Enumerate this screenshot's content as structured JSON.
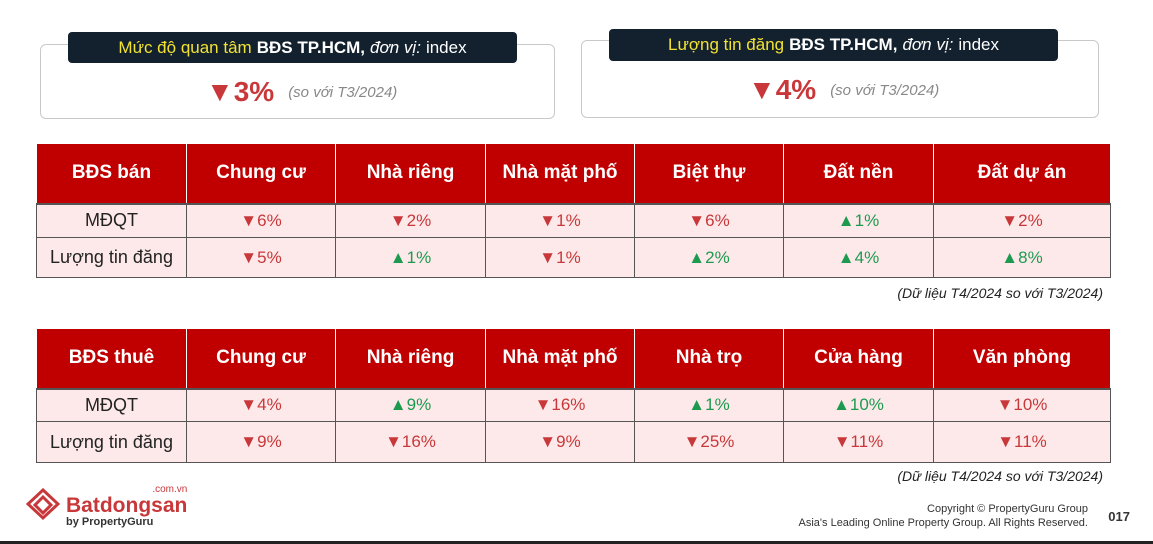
{
  "cards": [
    {
      "highlight": "Mức độ quan tâm",
      "bold": "BĐS TP.HCM,",
      "italic": "đơn vị:",
      "rest": "index",
      "value": "▼3%",
      "compare": "(so với T3/2024)"
    },
    {
      "highlight": "Lượng tin đăng",
      "bold": "BĐS TP.HCM,",
      "italic": "đơn vị:",
      "rest": "index",
      "value": "▼4%",
      "compare": "(so với T3/2024)"
    }
  ],
  "sale_table": {
    "headers": [
      "BĐS bán",
      "Chung cư",
      "Nhà riêng",
      "Nhà mặt phố",
      "Biệt thự",
      "Đất nền",
      "Đất dự án"
    ],
    "rows": [
      {
        "label": "MĐQT",
        "cells": [
          {
            "v": "▼6%",
            "d": "dn"
          },
          {
            "v": "▼2%",
            "d": "dn"
          },
          {
            "v": "▼1%",
            "d": "dn"
          },
          {
            "v": "▼6%",
            "d": "dn"
          },
          {
            "v": "▲1%",
            "d": "up"
          },
          {
            "v": "▼2%",
            "d": "dn"
          }
        ]
      },
      {
        "label": "Lượng tin đăng",
        "cells": [
          {
            "v": "▼5%",
            "d": "dn"
          },
          {
            "v": "▲1%",
            "d": "up"
          },
          {
            "v": "▼1%",
            "d": "dn"
          },
          {
            "v": "▲2%",
            "d": "up"
          },
          {
            "v": "▲4%",
            "d": "up"
          },
          {
            "v": "▲8%",
            "d": "up"
          }
        ]
      }
    ],
    "note": "(Dữ liệu T4/2024 so với T3/2024)"
  },
  "rent_table": {
    "headers": [
      "BĐS thuê",
      "Chung cư",
      "Nhà riêng",
      "Nhà mặt phố",
      "Nhà trọ",
      "Cửa hàng",
      "Văn phòng"
    ],
    "rows": [
      {
        "label": "MĐQT",
        "cells": [
          {
            "v": "▼4%",
            "d": "dn"
          },
          {
            "v": "▲9%",
            "d": "up"
          },
          {
            "v": "▼16%",
            "d": "dn"
          },
          {
            "v": "▲1%",
            "d": "up"
          },
          {
            "v": "▲10%",
            "d": "up"
          },
          {
            "v": "▼10%",
            "d": "dn"
          }
        ]
      },
      {
        "label": "Lượng tin đăng",
        "cells": [
          {
            "v": "▼9%",
            "d": "dn"
          },
          {
            "v": "▼16%",
            "d": "dn"
          },
          {
            "v": "▼9%",
            "d": "dn"
          },
          {
            "v": "▼25%",
            "d": "dn"
          },
          {
            "v": "▼11%",
            "d": "dn"
          },
          {
            "v": "▼11%",
            "d": "dn"
          }
        ]
      }
    ],
    "note": "(Dữ liệu T4/2024 so với T3/2024)"
  },
  "footer": {
    "logo_domain": ".com.vn",
    "logo_name": "Batdongsan",
    "logo_by": "by PropertyGuru",
    "copyright": "Copyright © PropertyGuru Group",
    "rights": "Asia's Leading Online Property Group. All Rights Reserved.",
    "page": "017"
  }
}
